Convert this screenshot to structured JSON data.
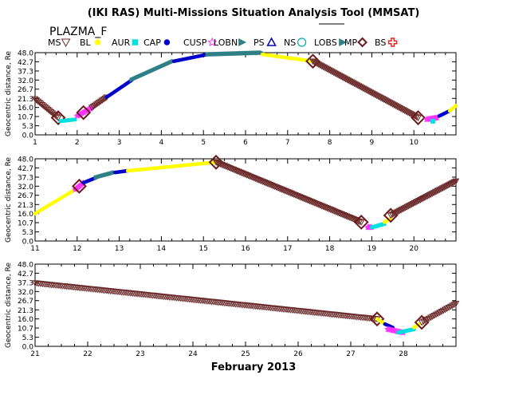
{
  "page": {
    "title": "(IKI RAS) Multi-Missions Situation Analysis Tool (MMSAT)",
    "spacecraft": "PLAZMA_F",
    "month_label": "February 2013"
  },
  "legend": [
    {
      "label": "MS",
      "color": "#6b2a2a",
      "symbol": "triangle-down-open"
    },
    {
      "label": "BL",
      "color": "#ffff00",
      "symbol": "dot"
    },
    {
      "label": "AUR",
      "color": "#00e0e0",
      "symbol": "square"
    },
    {
      "label": "CAP",
      "color": "#0000cc",
      "symbol": "dot"
    },
    {
      "label": "CUSP",
      "color": "#ff33ff",
      "symbol": "star-open"
    },
    {
      "label": "LOBN",
      "color": "#2e7f86",
      "symbol": "triangle-filled"
    },
    {
      "label": "PS",
      "color": "#0000aa",
      "symbol": "triangle-open"
    },
    {
      "label": "NS",
      "color": "#00aaaa",
      "symbol": "circle-open"
    },
    {
      "label": "LOBS",
      "color": "#2e7f86",
      "symbol": "triangle-filled"
    },
    {
      "label": "MP",
      "color": "#6b1a1a",
      "symbol": "diamond-open"
    },
    {
      "label": "BS",
      "color": "#ee2222",
      "symbol": "cross-open"
    }
  ],
  "chart_data": [
    {
      "type": "scatter",
      "title": "",
      "xlabel": "",
      "ylabel": "Geocentric distance, Re",
      "xlim": [
        1,
        11
      ],
      "ylim": [
        0,
        48
      ],
      "xticks": [
        "1",
        "2",
        "3",
        "4",
        "5",
        "6",
        "7",
        "8",
        "9",
        "10"
      ],
      "yticks": [
        "48.0",
        "42.7",
        "37.3",
        "32.0",
        "26.7",
        "21.3",
        "16.0",
        "10.7",
        "5.3",
        "0.0"
      ],
      "segments": [
        {
          "region": "MS",
          "x": [
            1.0,
            1.55
          ],
          "y": [
            21,
            10
          ]
        },
        {
          "region": "MP",
          "x": [
            1.55
          ],
          "y": [
            10
          ]
        },
        {
          "region": "AUR",
          "x": [
            1.6,
            1.95
          ],
          "y": [
            8,
            9
          ]
        },
        {
          "region": "CUSP",
          "x": [
            2.0,
            2.35
          ],
          "y": [
            11,
            16
          ]
        },
        {
          "region": "MP",
          "x": [
            2.15
          ],
          "y": [
            13
          ]
        },
        {
          "region": "MS",
          "x": [
            2.35,
            2.7
          ],
          "y": [
            16,
            22
          ]
        },
        {
          "region": "CAP",
          "x": [
            2.7,
            3.3
          ],
          "y": [
            22,
            32
          ]
        },
        {
          "region": "LOBN",
          "x": [
            3.3,
            4.3
          ],
          "y": [
            32,
            43
          ]
        },
        {
          "region": "CAP",
          "x": [
            4.3,
            5.1
          ],
          "y": [
            43,
            47
          ]
        },
        {
          "region": "LOBN",
          "x": [
            5.1,
            6.4
          ],
          "y": [
            47,
            48
          ]
        },
        {
          "region": "BL",
          "x": [
            6.4,
            7.6
          ],
          "y": [
            47,
            43
          ]
        },
        {
          "region": "MP",
          "x": [
            7.6
          ],
          "y": [
            43
          ]
        },
        {
          "region": "MS",
          "x": [
            7.6,
            10.1
          ],
          "y": [
            43,
            10
          ]
        },
        {
          "region": "MP",
          "x": [
            10.1
          ],
          "y": [
            10
          ]
        },
        {
          "region": "CUSP",
          "x": [
            10.3,
            10.55
          ],
          "y": [
            9,
            10
          ]
        },
        {
          "region": "AUR",
          "x": [
            10.45
          ],
          "y": [
            8
          ]
        },
        {
          "region": "CAP",
          "x": [
            10.6,
            10.85
          ],
          "y": [
            11,
            14
          ]
        },
        {
          "region": "BL",
          "x": [
            10.85,
            11.0
          ],
          "y": [
            14,
            17
          ]
        }
      ]
    },
    {
      "type": "scatter",
      "title": "",
      "xlabel": "",
      "ylabel": "Geocentric distance, Re",
      "xlim": [
        11,
        21
      ],
      "ylim": [
        0,
        48
      ],
      "xticks": [
        "11",
        "12",
        "13",
        "14",
        "15",
        "16",
        "17",
        "18",
        "19",
        "20"
      ],
      "yticks": [
        "48.0",
        "42.7",
        "37.3",
        "32.0",
        "26.7",
        "21.3",
        "16.0",
        "10.7",
        "5.3",
        "0.0"
      ],
      "segments": [
        {
          "region": "BL",
          "x": [
            11.0,
            11.95
          ],
          "y": [
            16,
            30
          ]
        },
        {
          "region": "CUSP",
          "x": [
            11.95,
            12.15
          ],
          "y": [
            30,
            34
          ]
        },
        {
          "region": "MP",
          "x": [
            12.05
          ],
          "y": [
            32
          ]
        },
        {
          "region": "CAP",
          "x": [
            12.15,
            12.45
          ],
          "y": [
            34,
            37
          ]
        },
        {
          "region": "LOBN",
          "x": [
            12.45,
            12.9
          ],
          "y": [
            37,
            40
          ]
        },
        {
          "region": "CAP",
          "x": [
            12.9,
            13.2
          ],
          "y": [
            40,
            41
          ]
        },
        {
          "region": "BL",
          "x": [
            13.2,
            15.3
          ],
          "y": [
            41,
            46
          ]
        },
        {
          "region": "MP",
          "x": [
            15.3
          ],
          "y": [
            46
          ]
        },
        {
          "region": "MS",
          "x": [
            15.3,
            18.75
          ],
          "y": [
            46,
            11
          ]
        },
        {
          "region": "MP",
          "x": [
            18.75
          ],
          "y": [
            11
          ]
        },
        {
          "region": "CUSP",
          "x": [
            18.9,
            19.0
          ],
          "y": [
            8,
            8
          ]
        },
        {
          "region": "AUR",
          "x": [
            19.0,
            19.3
          ],
          "y": [
            8,
            10
          ]
        },
        {
          "region": "BL",
          "x": [
            19.3,
            19.45
          ],
          "y": [
            11,
            13
          ]
        },
        {
          "region": "MP",
          "x": [
            19.45
          ],
          "y": [
            15
          ]
        },
        {
          "region": "MS",
          "x": [
            19.45,
            21.0
          ],
          "y": [
            15,
            35
          ]
        }
      ]
    },
    {
      "type": "scatter",
      "title": "",
      "xlabel": "February 2013",
      "ylabel": "Geocentric distance, Re",
      "xlim": [
        21,
        29
      ],
      "ylim": [
        0,
        48
      ],
      "xticks": [
        "21",
        "22",
        "23",
        "24",
        "25",
        "26",
        "27",
        "28"
      ],
      "yticks": [
        "48.0",
        "42.7",
        "37.3",
        "32.0",
        "26.7",
        "21.3",
        "16.0",
        "10.7",
        "5.3",
        "0.0"
      ],
      "segments": [
        {
          "region": "MS",
          "x": [
            21.0,
            27.5
          ],
          "y": [
            37,
            16
          ]
        },
        {
          "region": "MP",
          "x": [
            27.5
          ],
          "y": [
            16
          ]
        },
        {
          "region": "BL",
          "x": [
            27.5,
            27.65
          ],
          "y": [
            16,
            13
          ]
        },
        {
          "region": "CAP",
          "x": [
            27.65,
            27.8
          ],
          "y": [
            13,
            11
          ]
        },
        {
          "region": "CUSP",
          "x": [
            27.7,
            28.0
          ],
          "y": [
            10,
            8
          ]
        },
        {
          "region": "AUR",
          "x": [
            27.9,
            28.2
          ],
          "y": [
            8,
            10
          ]
        },
        {
          "region": "BL",
          "x": [
            28.2,
            28.3
          ],
          "y": [
            11,
            13
          ]
        },
        {
          "region": "MP",
          "x": [
            28.35
          ],
          "y": [
            14
          ]
        },
        {
          "region": "MS",
          "x": [
            28.35,
            29.0
          ],
          "y": [
            14,
            25
          ]
        }
      ]
    }
  ]
}
